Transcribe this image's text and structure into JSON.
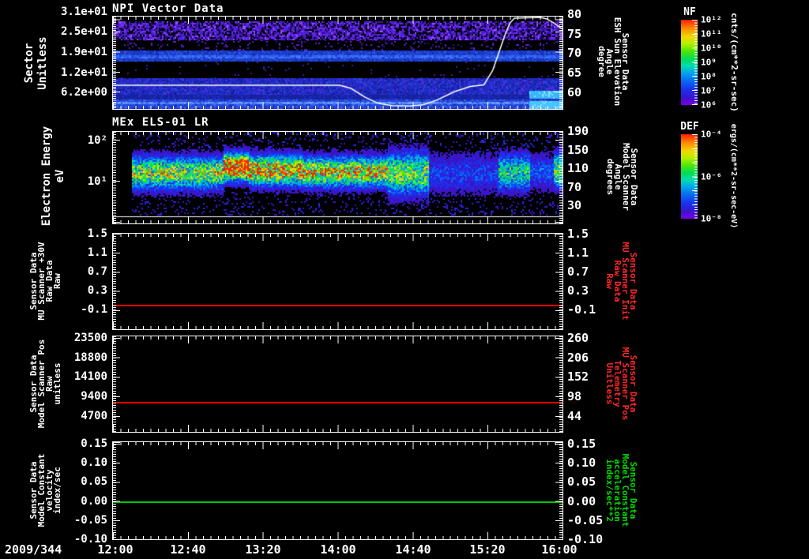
{
  "window": {
    "background": "#000000"
  },
  "x_axis": {
    "date_label": "2009/344",
    "tick_labels": [
      "12:00",
      "12:40",
      "13:20",
      "14:00",
      "14:40",
      "15:20",
      "16:00"
    ]
  },
  "chart_data": [
    {
      "type": "heatmap",
      "title": "NPI Vector Data",
      "ylabel_lines": [
        "Sector",
        "Unitless"
      ],
      "ytick_labels": [
        "3.1e+01",
        "2.5e+01",
        "1.9e+01",
        "1.2e+01",
        "6.2e+00"
      ],
      "y2label_lines": [
        "Sensor Data",
        "ESH Sun Elevation",
        "Angle",
        "degree"
      ],
      "y2tick_labels": [
        "80",
        "75",
        "70",
        "65",
        "60"
      ],
      "colorbar": {
        "title": "NF",
        "units": "cnts/(cm**2-sr-sec)",
        "tick_labels": [
          "10¹²",
          "10¹¹",
          "10¹⁰",
          "10⁹",
          "10⁸",
          "10⁷",
          "10⁶"
        ]
      },
      "bands": [
        {
          "y0": 0.0,
          "y1": 0.055,
          "base": "#000000",
          "noise": []
        },
        {
          "y0": 0.055,
          "y1": 0.25,
          "base": "#4a1ed2",
          "noise": [
            [
              "#000000",
              0.28
            ],
            [
              "#7a30ff",
              0.16
            ],
            [
              "#2a0c80",
              0.14
            ],
            [
              "#9a55ff",
              0.04
            ]
          ]
        },
        {
          "y0": 0.25,
          "y1": 0.37,
          "base": "#000000",
          "noise": [
            [
              "#5a22cc",
              0.07
            ],
            [
              "#30138a",
              0.05
            ]
          ]
        },
        {
          "y0": 0.37,
          "y1": 0.415,
          "base": "#1c3cd0",
          "noise": [
            [
              "#2a52e0",
              0.2
            ],
            [
              "#152cb0",
              0.15
            ]
          ]
        },
        {
          "y0": 0.415,
          "y1": 0.45,
          "base": "#2e62ee",
          "noise": [
            [
              "#3f7cf8",
              0.25
            ],
            [
              "#1f3fd0",
              0.2
            ]
          ]
        },
        {
          "y0": 0.45,
          "y1": 0.49,
          "base": "#1c3cd0",
          "noise": [
            [
              "#2a52e0",
              0.2
            ],
            [
              "#152cb0",
              0.15
            ]
          ]
        },
        {
          "y0": 0.49,
          "y1": 0.67,
          "base": "#000000",
          "noise": [
            [
              "#4418aa",
              0.02
            ]
          ]
        },
        {
          "y0": 0.67,
          "y1": 0.845,
          "base": "#1f2cc4",
          "noise": [
            [
              "#5028e0",
              0.13
            ],
            [
              "#141e96",
              0.17
            ],
            [
              "#2a44dd",
              0.1
            ]
          ]
        },
        {
          "y0": 0.845,
          "y1": 0.9,
          "base": "#16229e",
          "noise": [
            [
              "#1f2cc4",
              0.2
            ]
          ]
        },
        {
          "y0": 0.9,
          "y1": 0.922,
          "base": "#2544dd",
          "noise": [
            [
              "#3a62ee",
              0.22
            ],
            [
              "#1b2fb8",
              0.2
            ]
          ]
        },
        {
          "y0": 0.922,
          "y1": 0.945,
          "base": "#4f85f5",
          "noise": [
            [
              "#6fa5ff",
              0.3
            ],
            [
              "#2d55e0",
              0.15
            ]
          ]
        },
        {
          "y0": 0.945,
          "y1": 1.0,
          "base": "#2544dd",
          "noise": [
            [
              "#3a62ee",
              0.22
            ],
            [
              "#1b2fb8",
              0.2
            ]
          ]
        }
      ],
      "right_overlays": [
        {
          "x0": 0.926,
          "x1": 1.0,
          "y0": 0.8,
          "y1": 0.885,
          "color": "#38b8f8"
        },
        {
          "x0": 0.926,
          "x1": 1.0,
          "y0": 0.915,
          "y1": 0.99,
          "color": "#45c4ff"
        }
      ],
      "overlay_line": {
        "name": "ESH Sun Elevation Angle",
        "units": "degree",
        "color": "#ffffff",
        "axis_range": [
          60,
          80
        ],
        "points": [
          [
            0.0,
            61.6
          ],
          [
            0.505,
            61.6
          ],
          [
            0.53,
            60.8
          ],
          [
            0.56,
            58.6
          ],
          [
            0.59,
            57.0
          ],
          [
            0.62,
            56.4
          ],
          [
            0.66,
            56.3
          ],
          [
            0.69,
            56.6
          ],
          [
            0.72,
            57.8
          ],
          [
            0.76,
            60.0
          ],
          [
            0.795,
            61.3
          ],
          [
            0.825,
            61.7
          ],
          [
            0.845,
            65.5
          ],
          [
            0.86,
            70.5
          ],
          [
            0.872,
            74.5
          ],
          [
            0.883,
            77.5
          ],
          [
            0.893,
            78.8
          ],
          [
            0.95,
            79.0
          ],
          [
            0.965,
            78.6
          ],
          [
            0.98,
            77.6
          ],
          [
            1.0,
            76.0
          ]
        ]
      }
    },
    {
      "type": "heatmap",
      "title": "MEx ELS-01 LR",
      "ylabel_lines": [
        "Electron Energy",
        "eV"
      ],
      "ytick_labels": [
        "10²",
        "10¹"
      ],
      "y2label_lines": [
        "Sensor Data",
        "Model Scanner",
        "Angle",
        "degrees"
      ],
      "y2tick_labels": [
        "190",
        "150",
        "110",
        "70",
        "30"
      ],
      "colorbar": {
        "title": "DEF",
        "units": "ergs/(cm**2-sr-sec-eV)",
        "tick_labels": [
          "10⁻⁴",
          "10⁻⁶",
          "10⁻⁸"
        ]
      },
      "band_segments": [
        [
          0.0,
          0.039,
          0.0,
          51,
          13
        ],
        [
          0.039,
          0.245,
          0.62,
          51,
          13
        ],
        [
          0.245,
          0.3,
          0.97,
          44,
          11
        ],
        [
          0.3,
          0.42,
          0.8,
          48,
          12
        ],
        [
          0.42,
          0.61,
          0.72,
          50,
          12
        ],
        [
          0.61,
          0.7,
          0.58,
          52,
          17
        ],
        [
          0.7,
          0.855,
          0.2,
          52,
          16
        ],
        [
          0.855,
          0.926,
          0.45,
          50,
          15
        ],
        [
          0.926,
          0.978,
          0.24,
          50,
          14
        ],
        [
          0.978,
          1.0,
          0.58,
          48,
          14
        ]
      ]
    },
    {
      "type": "line",
      "ylabel_lines": [
        "Sensor Data",
        "MU Scanner +30V",
        "Raw Data",
        "Raw"
      ],
      "ytick_labels": [
        "1.5",
        "1.1",
        "0.7",
        "0.3",
        "-0.1"
      ],
      "y2label_lines": [
        "Sensor Data",
        "MU Scanner Init",
        "Raw Data",
        "Raw"
      ],
      "y2tick_labels": [
        "1.5",
        "1.1",
        "0.7",
        "0.3",
        "-0.1"
      ],
      "y2label_color": "#ff2828",
      "ylim": [
        -0.51,
        1.5
      ],
      "series": [
        {
          "name": "MU Scanner +30V Raw Data",
          "color": "#ff0000",
          "value": 0.0
        }
      ]
    },
    {
      "type": "line",
      "ylabel_lines": [
        "Sensor Data",
        "Model Scanner Pos",
        "Raw",
        "unitless"
      ],
      "ytick_labels": [
        "23500",
        "18800",
        "14100",
        "9400",
        "4700"
      ],
      "y2label_lines": [
        "Sensor Data",
        "MU Scanner Pos",
        "Telemetry",
        "Unitless"
      ],
      "y2tick_labels": [
        "260",
        "206",
        "152",
        "98",
        "44"
      ],
      "y2label_color": "#ff2828",
      "ylim": [
        900,
        23900
      ],
      "series": [
        {
          "name": "Model Scanner Pos Raw",
          "color": "#ff0000",
          "value": 8200
        }
      ]
    },
    {
      "type": "line",
      "ylabel_lines": [
        "Sensor Data",
        "Model Constant",
        "velocity",
        "index/sec"
      ],
      "ytick_labels": [
        "0.15",
        "0.10",
        "0.05",
        "0.00",
        "-0.05",
        "-0.10"
      ],
      "y2label_lines": [
        "Sensor Data",
        "Model Constant",
        "acceleration",
        "index/sec**2"
      ],
      "y2tick_labels": [
        "0.15",
        "0.10",
        "0.05",
        "0.00",
        "-0.05",
        "-0.10"
      ],
      "y2label_color": "#00dc00",
      "ylim": [
        -0.1,
        0.154
      ],
      "series": [
        {
          "name": "Model Constant velocity",
          "color": "#00c800",
          "value": 0.0
        }
      ]
    }
  ]
}
